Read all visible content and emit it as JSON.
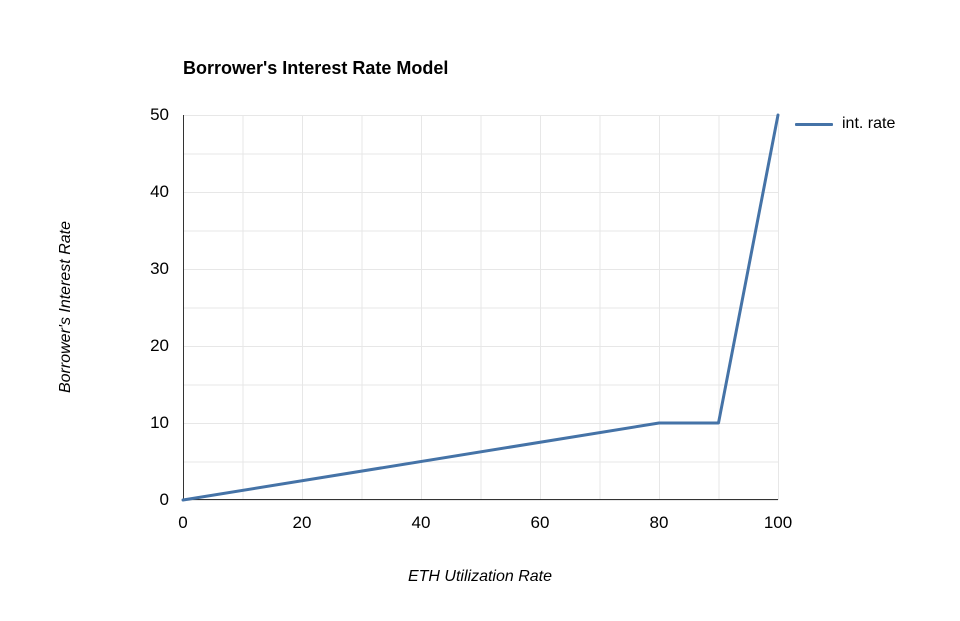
{
  "chart_data": {
    "type": "line",
    "title": "Borrower's Interest Rate Model",
    "xlabel": "ETH Utilization Rate",
    "ylabel": "Borrower's Interest Rate",
    "xlim": [
      0,
      100
    ],
    "ylim": [
      0,
      50
    ],
    "x_ticks": [
      0,
      20,
      40,
      60,
      80,
      100
    ],
    "y_ticks": [
      0,
      10,
      20,
      30,
      40,
      50
    ],
    "x_minor_step": 10,
    "y_minor_step": 5,
    "grid": true,
    "legend_position": "right",
    "series": [
      {
        "name": "int. rate",
        "color": "#4573a7",
        "points": [
          [
            0,
            0
          ],
          [
            80,
            10
          ],
          [
            90,
            10
          ],
          [
            100,
            50
          ]
        ]
      }
    ]
  },
  "colors": {
    "background": "#ffffff",
    "grid": "#e7e7e7",
    "axis": "#333333",
    "text": "#000000"
  }
}
